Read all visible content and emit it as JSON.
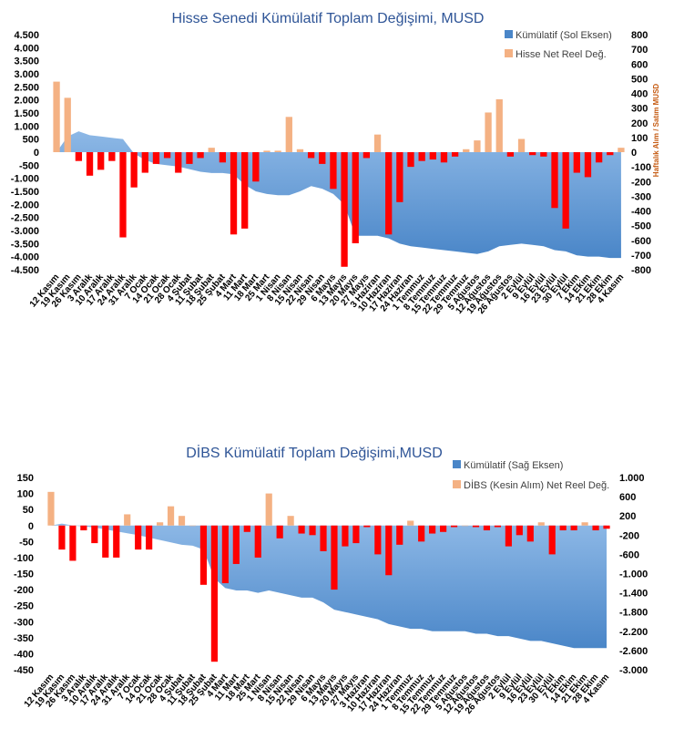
{
  "colors": {
    "cumulative": "#4a86c8",
    "cumulative_light": "#8db8e6",
    "positive": "#f4b183",
    "negative": "#ff0000",
    "title": "#2f5597",
    "axis_title": "#c55a11"
  },
  "chart_data": [
    {
      "type": "bar",
      "title": "Hisse Senedi Kümülatif Toplam Değişimi, MUSD",
      "legend": {
        "position": "top-right",
        "cumulative": "Kümülatif (Sol Eksen)",
        "bars": "Hisse Net Reel Değ."
      },
      "ylabel_right": "Haftalık Alım / Satım MUSD",
      "y_left": {
        "min": -4.5,
        "max": 4.5,
        "ticks": [
          "4.500",
          "4.000",
          "3.500",
          "3.000",
          "2.500",
          "2.000",
          "1.500",
          "1.000",
          "500",
          "0",
          "-500",
          "-1.000",
          "-1.500",
          "-2.000",
          "-2.500",
          "-3.000",
          "-3.500",
          "-4.000",
          "-4.500"
        ],
        "tick_values": [
          4.5,
          4.0,
          3.5,
          3.0,
          2.5,
          2.0,
          1.5,
          1.0,
          0.5,
          0,
          -0.5,
          -1.0,
          -1.5,
          -2.0,
          -2.5,
          -3.0,
          -3.5,
          -4.0,
          -4.5
        ]
      },
      "y_right": {
        "min": -800,
        "max": 800,
        "ticks": [
          "800",
          "700",
          "600",
          "500",
          "400",
          "300",
          "200",
          "100",
          "0",
          "-100",
          "-200",
          "-300",
          "-400",
          "-500",
          "-600",
          "-700",
          "-800"
        ],
        "tick_values": [
          800,
          700,
          600,
          500,
          400,
          300,
          200,
          100,
          0,
          -100,
          -200,
          -300,
          -400,
          -500,
          -600,
          -700,
          -800
        ]
      },
      "categories": [
        "12 Kasım",
        "19 Kasım",
        "26 Kasım",
        "3 Aralık",
        "10 Aralık",
        "17 Aralık",
        "24 Aralık",
        "31 Aralık",
        "7 Ocak",
        "14 Ocak",
        "21 Ocak",
        "28 Ocak",
        "4 Şubat",
        "11 Şubat",
        "18 Şubat",
        "25 Şubat",
        "4 Mart",
        "11 Mart",
        "18 Mart",
        "25 Mart",
        "1 Nisan",
        "8 Nisan",
        "15 Nisan",
        "22 Nisan",
        "29 Nisan",
        "6 Mayıs",
        "13 Mayıs",
        "20 Mayıs",
        "27 Mayıs",
        "3 Haziran",
        "10 Haziran",
        "17 Haziran",
        "24 Haziran",
        "1 Temmuz",
        "8 Temmuz",
        "15 Temmuz",
        "22 Temmuz",
        "29 Temmuz",
        "5 Ağustos",
        "12 Ağustos",
        "19 Ağustos",
        "26 Ağustos",
        "2 Eylül",
        "9 Eylül",
        "16 Eylül",
        "23 Eylül",
        "30 Eylül",
        "7 Ekim",
        "14 Ekim",
        "21 Ekim",
        "28 Ekim",
        "4 Kasım"
      ],
      "bar_values": [
        480,
        370,
        -60,
        -160,
        -120,
        -60,
        -580,
        -240,
        -140,
        -80,
        -40,
        -140,
        -80,
        -40,
        30,
        -70,
        -560,
        -520,
        -200,
        10,
        10,
        240,
        20,
        -40,
        -80,
        -250,
        -780,
        -620,
        -40,
        120,
        -560,
        -340,
        -100,
        -60,
        -50,
        -70,
        -30,
        20,
        80,
        270,
        360,
        -30,
        90,
        -20,
        -30,
        -380,
        -520,
        -140,
        -170,
        -70,
        -20,
        30
      ],
      "cumulative_values": [
        0,
        0.6,
        0.8,
        0.65,
        0.6,
        0.55,
        0.5,
        -0.05,
        -0.3,
        -0.45,
        -0.5,
        -0.55,
        -0.65,
        -0.75,
        -0.8,
        -0.8,
        -0.85,
        -1.25,
        -1.5,
        -1.6,
        -1.65,
        -1.65,
        -1.5,
        -1.3,
        -1.4,
        -1.6,
        -2.0,
        -3.2,
        -3.2,
        -3.2,
        -3.3,
        -3.5,
        -3.6,
        -3.65,
        -3.7,
        -3.75,
        -3.8,
        -3.85,
        -3.9,
        -3.8,
        -3.6,
        -3.55,
        -3.5,
        -3.55,
        -3.6,
        -3.75,
        -3.8,
        -3.95,
        -4.0,
        -4.0,
        -4.05,
        -4.05
      ]
    },
    {
      "type": "bar",
      "title": "DİBS Kümülatif Toplam Değişimi,MUSD",
      "legend": {
        "position": "top-right",
        "cumulative": "Kümülatif (Sağ Eksen)",
        "bars": "DİBS (Kesin Alım) Net Reel Değ."
      },
      "y_left": {
        "min": -450,
        "max": 150,
        "ticks": [
          "150",
          "100",
          "50",
          "0",
          "-50",
          "-100",
          "-150",
          "-200",
          "-250",
          "-300",
          "-350",
          "-400",
          "-450"
        ],
        "tick_values": [
          150,
          100,
          50,
          0,
          -50,
          -100,
          -150,
          -200,
          -250,
          -300,
          -350,
          -400,
          -450
        ]
      },
      "y_right": {
        "min": -3000,
        "max": 1000,
        "ticks": [
          "1.000",
          "600",
          "200",
          "-200",
          "-600",
          "-1.000",
          "-1.400",
          "-1.800",
          "-2.200",
          "-2.600",
          "-3.000"
        ],
        "tick_values": [
          1000,
          600,
          200,
          -200,
          -600,
          -1000,
          -1400,
          -1800,
          -2200,
          -2600,
          -3000
        ]
      },
      "categories": [
        "12 Kasım",
        "19 Kasım",
        "26 Kasım",
        "3 Aralık",
        "10 Aralık",
        "17 Aralık",
        "24 Aralık",
        "31 Aralık",
        "7 Ocak",
        "14 Ocak",
        "21 Ocak",
        "28 Ocak",
        "4 Şubat",
        "11 Şubat",
        "18 Şubat",
        "25 Şubat",
        "4 Mart",
        "11 Mart",
        "18 Mart",
        "25 Mart",
        "1 Nisan",
        "8 Nisan",
        "15 Nisan",
        "22 Nisan",
        "29 Nisan",
        "6 Mayıs",
        "13 Mayıs",
        "20 Mayıs",
        "27 Mayıs",
        "3 Haziran",
        "10 Haziran",
        "17 Haziran",
        "24 Haziran",
        "1 Temmuz",
        "8 Temmuz",
        "15 Temmuz",
        "22 Temmuz",
        "29 Temmuz",
        "5 Ağustos",
        "12 Ağustos",
        "19 Ağustos",
        "26 Ağustos",
        "2 Eylül",
        "9 Eylül",
        "16 Eylül",
        "23 Eylül",
        "30 Eylül",
        "7 Ekim",
        "14 Ekim",
        "21 Ekim",
        "28 Ekim",
        "4 Kasım"
      ],
      "bar_values": [
        105,
        -75,
        -110,
        -15,
        -55,
        -100,
        -100,
        35,
        -75,
        -75,
        10,
        60,
        30,
        0,
        -185,
        -425,
        -180,
        -120,
        -20,
        -100,
        100,
        -40,
        30,
        -25,
        -30,
        -80,
        -200,
        -65,
        -55,
        -5,
        -90,
        -155,
        -60,
        15,
        -50,
        -25,
        -20,
        -5,
        0,
        -5,
        -15,
        -5,
        -65,
        -30,
        -50,
        10,
        -90,
        -15,
        -15,
        10,
        -15,
        -10
      ],
      "cumulative_values": [
        0,
        40,
        0,
        -20,
        -40,
        -80,
        -120,
        -160,
        -200,
        -250,
        -300,
        -350,
        -400,
        -420,
        -500,
        -1100,
        -1300,
        -1350,
        -1350,
        -1400,
        -1350,
        -1400,
        -1450,
        -1500,
        -1500,
        -1600,
        -1750,
        -1800,
        -1850,
        -1900,
        -1950,
        -2050,
        -2100,
        -2150,
        -2150,
        -2200,
        -2200,
        -2200,
        -2200,
        -2250,
        -2250,
        -2300,
        -2300,
        -2350,
        -2400,
        -2400,
        -2450,
        -2500,
        -2550,
        -2550,
        -2550,
        -2550
      ]
    }
  ]
}
